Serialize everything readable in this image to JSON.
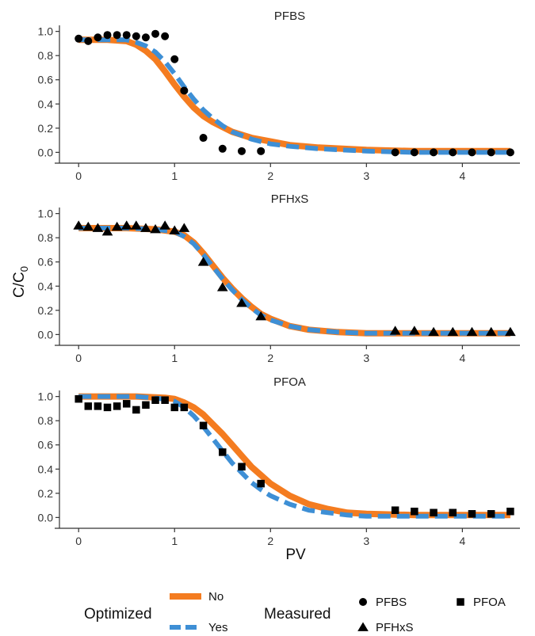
{
  "chart_data": {
    "type": "line+scatter",
    "ylabel": "C/C",
    "ylabel_subscript": "0",
    "xlabel": "PV",
    "xlim": [
      -0.2,
      4.6
    ],
    "ylim": [
      -0.05,
      1.05
    ],
    "x_ticks": [
      0,
      1,
      2,
      3,
      4
    ],
    "y_ticks": [
      0.0,
      0.2,
      0.4,
      0.6,
      0.8,
      1.0
    ],
    "x_tick_labels": [
      "0",
      "1",
      "2",
      "3",
      "4"
    ],
    "y_tick_labels": [
      "0.0",
      "0.2",
      "0.4",
      "0.6",
      "0.8",
      "1.0"
    ],
    "colors": {
      "No": "#f47c20",
      "Yes": "#3e8fd5",
      "points": "#000000"
    },
    "panels": [
      {
        "title": "PFBS",
        "marker": "circle",
        "measured": {
          "x": [
            0.0,
            0.1,
            0.2,
            0.3,
            0.4,
            0.5,
            0.6,
            0.7,
            0.8,
            0.9,
            1.0,
            1.1,
            1.3,
            1.5,
            1.7,
            1.9,
            3.3,
            3.5,
            3.7,
            3.9,
            4.1,
            4.3,
            4.5
          ],
          "y": [
            0.94,
            0.92,
            0.95,
            0.97,
            0.97,
            0.97,
            0.96,
            0.95,
            0.98,
            0.96,
            0.77,
            0.51,
            0.12,
            0.03,
            0.01,
            0.01,
            0.0,
            0.0,
            0.0,
            0.0,
            0.0,
            0.0,
            0.0
          ]
        },
        "curves": {
          "No": {
            "x": [
              0.0,
              0.3,
              0.5,
              0.6,
              0.7,
              0.8,
              0.9,
              1.0,
              1.1,
              1.2,
              1.3,
              1.4,
              1.5,
              1.6,
              1.8,
              2.0,
              2.2,
              2.5,
              3.0,
              3.5,
              4.0,
              4.5
            ],
            "y": [
              0.93,
              0.93,
              0.92,
              0.89,
              0.84,
              0.77,
              0.67,
              0.56,
              0.46,
              0.37,
              0.3,
              0.25,
              0.21,
              0.17,
              0.12,
              0.09,
              0.06,
              0.04,
              0.02,
              0.01,
              0.01,
              0.01
            ]
          },
          "Yes": {
            "x": [
              0.0,
              0.3,
              0.5,
              0.6,
              0.7,
              0.8,
              0.9,
              1.0,
              1.1,
              1.2,
              1.3,
              1.4,
              1.5,
              1.6,
              1.8,
              2.0,
              2.2,
              2.5,
              3.0,
              3.5,
              4.0,
              4.5
            ],
            "y": [
              0.93,
              0.93,
              0.93,
              0.91,
              0.88,
              0.83,
              0.75,
              0.65,
              0.54,
              0.44,
              0.35,
              0.28,
              0.22,
              0.17,
              0.11,
              0.07,
              0.05,
              0.03,
              0.01,
              0.0,
              0.0,
              0.0
            ]
          }
        }
      },
      {
        "title": "PFHxS",
        "marker": "triangle",
        "measured": {
          "x": [
            0.0,
            0.1,
            0.2,
            0.3,
            0.4,
            0.5,
            0.6,
            0.7,
            0.8,
            0.9,
            1.0,
            1.1,
            1.3,
            1.5,
            1.7,
            1.9,
            3.3,
            3.5,
            3.7,
            3.9,
            4.1,
            4.3,
            4.5
          ],
          "y": [
            0.9,
            0.89,
            0.88,
            0.85,
            0.89,
            0.9,
            0.9,
            0.88,
            0.87,
            0.9,
            0.86,
            0.88,
            0.6,
            0.39,
            0.26,
            0.15,
            0.03,
            0.03,
            0.02,
            0.02,
            0.02,
            0.02,
            0.02
          ]
        },
        "curves": {
          "No": {
            "x": [
              0.0,
              0.5,
              0.8,
              1.0,
              1.1,
              1.2,
              1.3,
              1.4,
              1.5,
              1.6,
              1.7,
              1.8,
              1.9,
              2.0,
              2.2,
              2.4,
              2.7,
              3.0,
              3.5,
              4.0,
              4.5
            ],
            "y": [
              0.88,
              0.88,
              0.87,
              0.85,
              0.82,
              0.76,
              0.67,
              0.57,
              0.47,
              0.38,
              0.3,
              0.23,
              0.17,
              0.13,
              0.07,
              0.04,
              0.02,
              0.01,
              0.01,
              0.01,
              0.01
            ]
          },
          "Yes": {
            "x": [
              0.0,
              0.5,
              0.8,
              1.0,
              1.1,
              1.2,
              1.3,
              1.4,
              1.5,
              1.6,
              1.7,
              1.8,
              1.9,
              2.0,
              2.2,
              2.4,
              2.7,
              3.0,
              3.5,
              4.0,
              4.5
            ],
            "y": [
              0.88,
              0.88,
              0.87,
              0.85,
              0.81,
              0.75,
              0.66,
              0.56,
              0.46,
              0.37,
              0.29,
              0.22,
              0.16,
              0.12,
              0.07,
              0.04,
              0.02,
              0.01,
              0.01,
              0.01,
              0.01
            ]
          }
        }
      },
      {
        "title": "PFOA",
        "marker": "square",
        "measured": {
          "x": [
            0.0,
            0.1,
            0.2,
            0.3,
            0.4,
            0.5,
            0.6,
            0.7,
            0.8,
            0.9,
            1.0,
            1.1,
            1.3,
            1.5,
            1.7,
            1.9,
            3.3,
            3.5,
            3.7,
            3.9,
            4.1,
            4.3,
            4.5
          ],
          "y": [
            0.98,
            0.92,
            0.92,
            0.91,
            0.92,
            0.94,
            0.89,
            0.93,
            0.97,
            0.97,
            0.91,
            0.91,
            0.76,
            0.54,
            0.42,
            0.28,
            0.06,
            0.05,
            0.04,
            0.04,
            0.03,
            0.03,
            0.05
          ]
        },
        "curves": {
          "No": {
            "x": [
              0.0,
              0.6,
              0.9,
              1.0,
              1.1,
              1.2,
              1.3,
              1.4,
              1.5,
              1.6,
              1.7,
              1.8,
              1.9,
              2.0,
              2.2,
              2.4,
              2.6,
              2.8,
              3.0,
              3.5,
              4.0,
              4.5
            ],
            "y": [
              1.0,
              1.0,
              0.99,
              0.98,
              0.95,
              0.91,
              0.85,
              0.77,
              0.69,
              0.6,
              0.51,
              0.42,
              0.35,
              0.28,
              0.18,
              0.11,
              0.07,
              0.04,
              0.03,
              0.02,
              0.02,
              0.02
            ]
          },
          "Yes": {
            "x": [
              0.0,
              0.6,
              0.9,
              1.0,
              1.1,
              1.2,
              1.3,
              1.4,
              1.5,
              1.6,
              1.7,
              1.8,
              1.9,
              2.0,
              2.2,
              2.4,
              2.6,
              2.8,
              3.0,
              3.5,
              4.0,
              4.5
            ],
            "y": [
              1.0,
              1.0,
              0.98,
              0.96,
              0.91,
              0.84,
              0.75,
              0.65,
              0.55,
              0.45,
              0.37,
              0.29,
              0.23,
              0.18,
              0.11,
              0.06,
              0.04,
              0.02,
              0.01,
              0.01,
              0.01,
              0.01
            ]
          }
        }
      }
    ],
    "legends": {
      "optimized": {
        "title": "Optimized",
        "entries": [
          {
            "label": "No",
            "key": "No"
          },
          {
            "label": "Yes",
            "key": "Yes"
          }
        ]
      },
      "measured": {
        "title": "Measured",
        "entries": [
          {
            "label": "PFBS",
            "marker": "circle"
          },
          {
            "label": "PFOA",
            "marker": "square"
          },
          {
            "label": "PFHxS",
            "marker": "triangle"
          }
        ]
      }
    }
  }
}
